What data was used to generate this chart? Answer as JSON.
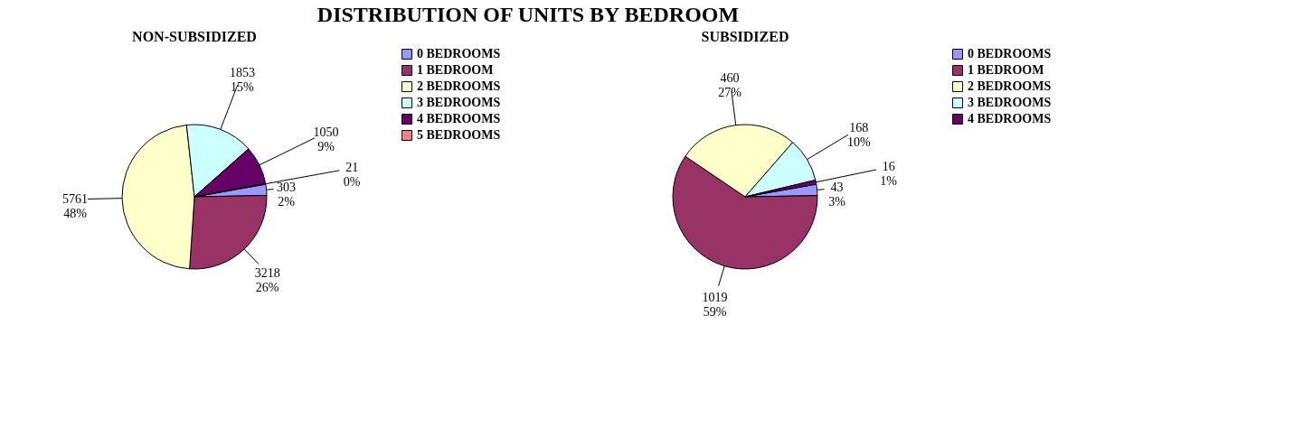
{
  "chart_data": [
    {
      "type": "pie",
      "title": "DISTRIBUTION OF UNITS BY BEDROOM",
      "subtitle": "NON-SUBSIDIZED",
      "legend": "right",
      "categories": [
        "0 BEDROOMS",
        "1 BEDROOM",
        "2 BEDROOMS",
        "3 BEDROOMS",
        "4 BEDROOMS",
        "5 BEDROOMS"
      ],
      "values": [
        303,
        3218,
        5761,
        1853,
        1050,
        21
      ],
      "colors": [
        "#9999ff",
        "#993366",
        "#ffffcc",
        "#ccffff",
        "#660066",
        "#ff8080"
      ],
      "value_labels": [
        "303\n2%",
        "3218\n26%",
        "5761\n48%",
        "1853\n15%",
        "1050\n9%",
        "21\n0%"
      ]
    },
    {
      "type": "pie",
      "subtitle": "SUBSIDIZED",
      "legend": "right",
      "categories": [
        "0 BEDROOMS",
        "1 BEDROOM",
        "2 BEDROOMS",
        "3 BEDROOMS",
        "4 BEDROOMS"
      ],
      "values": [
        43,
        1019,
        460,
        168,
        16
      ],
      "colors": [
        "#9999ff",
        "#993366",
        "#ffffcc",
        "#ccffff",
        "#660066"
      ],
      "value_labels": [
        "43\n3%",
        "1019\n59%",
        "460\n27%",
        "168\n10%",
        "16\n1%"
      ]
    }
  ]
}
